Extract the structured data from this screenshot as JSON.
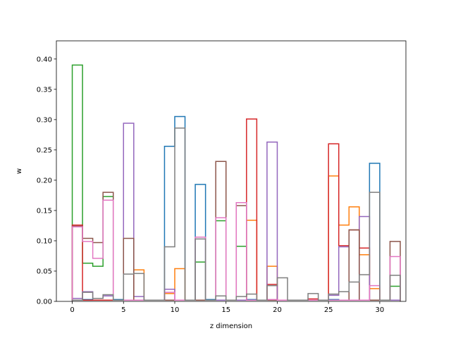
{
  "chart_data": {
    "type": "step-histogram",
    "title": "",
    "xlabel": "z dimension",
    "ylabel": "w",
    "xlim": [
      -1.55,
      32.55
    ],
    "ylim": [
      0,
      0.43
    ],
    "xticks": [
      0,
      5,
      10,
      15,
      20,
      25,
      30
    ],
    "yticks": [
      0.0,
      0.05,
      0.1,
      0.15,
      0.2,
      0.25,
      0.3,
      0.35,
      0.4
    ],
    "grid": false,
    "legend": "none",
    "bin_start": 0,
    "bin_width": 1,
    "series": [
      {
        "color": "#1f77b4",
        "values": [
          0.002,
          0.003,
          0.002,
          0.002,
          0.003,
          0.002,
          0.002,
          0.002,
          0.002,
          0.256,
          0.305,
          0.002,
          0.193,
          0.003,
          0.002,
          0.002,
          0.002,
          0.003,
          0.002,
          0.002,
          0.002,
          0.002,
          0.002,
          0.002,
          0.002,
          0.003,
          0.002,
          0.002,
          0.002,
          0.228,
          0.002,
          0.002
        ]
      },
      {
        "color": "#ff7f0e",
        "values": [
          0.002,
          0.002,
          0.002,
          0.002,
          0.002,
          0.002,
          0.052,
          0.002,
          0.002,
          0.013,
          0.054,
          0.002,
          0.002,
          0.002,
          0.002,
          0.002,
          0.002,
          0.134,
          0.002,
          0.058,
          0.002,
          0.002,
          0.002,
          0.002,
          0.002,
          0.207,
          0.126,
          0.156,
          0.077,
          0.021,
          0.002,
          0.002
        ]
      },
      {
        "color": "#2ca02c",
        "values": [
          0.39,
          0.063,
          0.058,
          0.173,
          0.002,
          0.002,
          0.002,
          0.002,
          0.002,
          0.002,
          0.002,
          0.002,
          0.065,
          0.002,
          0.133,
          0.002,
          0.091,
          0.002,
          0.002,
          0.002,
          0.002,
          0.002,
          0.002,
          0.002,
          0.002,
          0.002,
          0.002,
          0.002,
          0.002,
          0.002,
          0.002,
          0.025
        ]
      },
      {
        "color": "#d62728",
        "values": [
          0.126,
          0.002,
          0.002,
          0.002,
          0.002,
          0.002,
          0.002,
          0.002,
          0.002,
          0.002,
          0.002,
          0.002,
          0.002,
          0.002,
          0.002,
          0.002,
          0.002,
          0.301,
          0.002,
          0.028,
          0.002,
          0.002,
          0.002,
          0.004,
          0.002,
          0.26,
          0.092,
          0.118,
          0.088,
          0.002,
          0.002,
          0.002
        ]
      },
      {
        "color": "#9467bd",
        "values": [
          0.005,
          0.016,
          0.005,
          0.009,
          0.002,
          0.294,
          0.008,
          0.002,
          0.002,
          0.02,
          0.002,
          0.002,
          0.002,
          0.002,
          0.002,
          0.002,
          0.002,
          0.002,
          0.002,
          0.263,
          0.002,
          0.002,
          0.002,
          0.002,
          0.002,
          0.01,
          0.09,
          0.002,
          0.14,
          0.002,
          0.002,
          0.002
        ]
      },
      {
        "color": "#8c564b",
        "values": [
          0.124,
          0.104,
          0.097,
          0.18,
          0.002,
          0.104,
          0.002,
          0.002,
          0.002,
          0.002,
          0.002,
          0.002,
          0.002,
          0.002,
          0.231,
          0.002,
          0.158,
          0.002,
          0.002,
          0.002,
          0.002,
          0.002,
          0.002,
          0.002,
          0.002,
          0.002,
          0.002,
          0.118,
          0.002,
          0.002,
          0.002,
          0.099
        ]
      },
      {
        "color": "#e377c2",
        "values": [
          0.123,
          0.099,
          0.071,
          0.167,
          0.002,
          0.002,
          0.002,
          0.002,
          0.002,
          0.015,
          0.002,
          0.002,
          0.106,
          0.002,
          0.138,
          0.002,
          0.163,
          0.002,
          0.002,
          0.003,
          0.002,
          0.002,
          0.002,
          0.002,
          0.002,
          0.002,
          0.002,
          0.002,
          0.002,
          0.026,
          0.002,
          0.074
        ]
      },
      {
        "color": "#7f7f7f",
        "values": [
          0.002,
          0.015,
          0.005,
          0.011,
          0.002,
          0.045,
          0.046,
          0.002,
          0.002,
          0.09,
          0.286,
          0.002,
          0.103,
          0.002,
          0.009,
          0.002,
          0.008,
          0.012,
          0.002,
          0.026,
          0.039,
          0.002,
          0.002,
          0.013,
          0.002,
          0.012,
          0.016,
          0.032,
          0.044,
          0.18,
          0.002,
          0.043
        ]
      }
    ]
  }
}
